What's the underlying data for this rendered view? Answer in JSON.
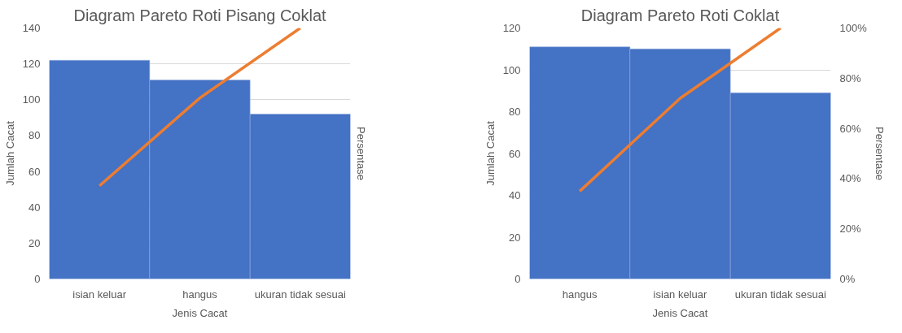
{
  "chart_data": [
    {
      "type": "bar",
      "title": "Diagram Pareto Roti Pisang Coklat",
      "xlabel": "Jenis Cacat",
      "ylabel": "Jumlah Cacat",
      "y2label": "Persentase",
      "categories": [
        "isian keluar",
        "hangus",
        "ukuran tidak sesuai"
      ],
      "series": [
        {
          "color": "#4472c4",
          "values": [
            122,
            111,
            92
          ]
        },
        {
          "type": "line",
          "color": "#ed7d31",
          "values": [
            52,
            101,
            140
          ]
        }
      ],
      "ylim": [
        0,
        140
      ],
      "yticks": [
        0,
        20,
        40,
        60,
        80,
        100,
        120,
        140
      ],
      "grid": "y",
      "marker": "none",
      "line_style": "solid"
    },
    {
      "type": "bar",
      "title": "Diagram Pareto Roti Coklat",
      "xlabel": "Jenis Cacat",
      "ylabel": "Jumlah Cacat",
      "y2label": "Persentase",
      "categories": [
        "hangus",
        "isian keluar",
        "ukuran tidak sesuai"
      ],
      "series": [
        {
          "color": "#4472c4",
          "values": [
            111,
            110,
            89
          ]
        },
        {
          "type": "line",
          "color": "#ed7d31",
          "axis": "y2",
          "values": [
            35,
            72,
            100
          ]
        }
      ],
      "ylim": [
        0,
        120
      ],
      "yticks": [
        0,
        20,
        40,
        60,
        80,
        100,
        120
      ],
      "y2lim": [
        0,
        100
      ],
      "y2ticks": [
        {
          "value": 0,
          "label": "0%"
        },
        {
          "value": 20,
          "label": "20%"
        },
        {
          "value": 40,
          "label": "40%"
        },
        {
          "value": 60,
          "label": "60%"
        },
        {
          "value": 80,
          "label": "80%"
        },
        {
          "value": 100,
          "label": "100%"
        }
      ],
      "grid": "y",
      "marker": "none",
      "line_style": "solid"
    }
  ]
}
